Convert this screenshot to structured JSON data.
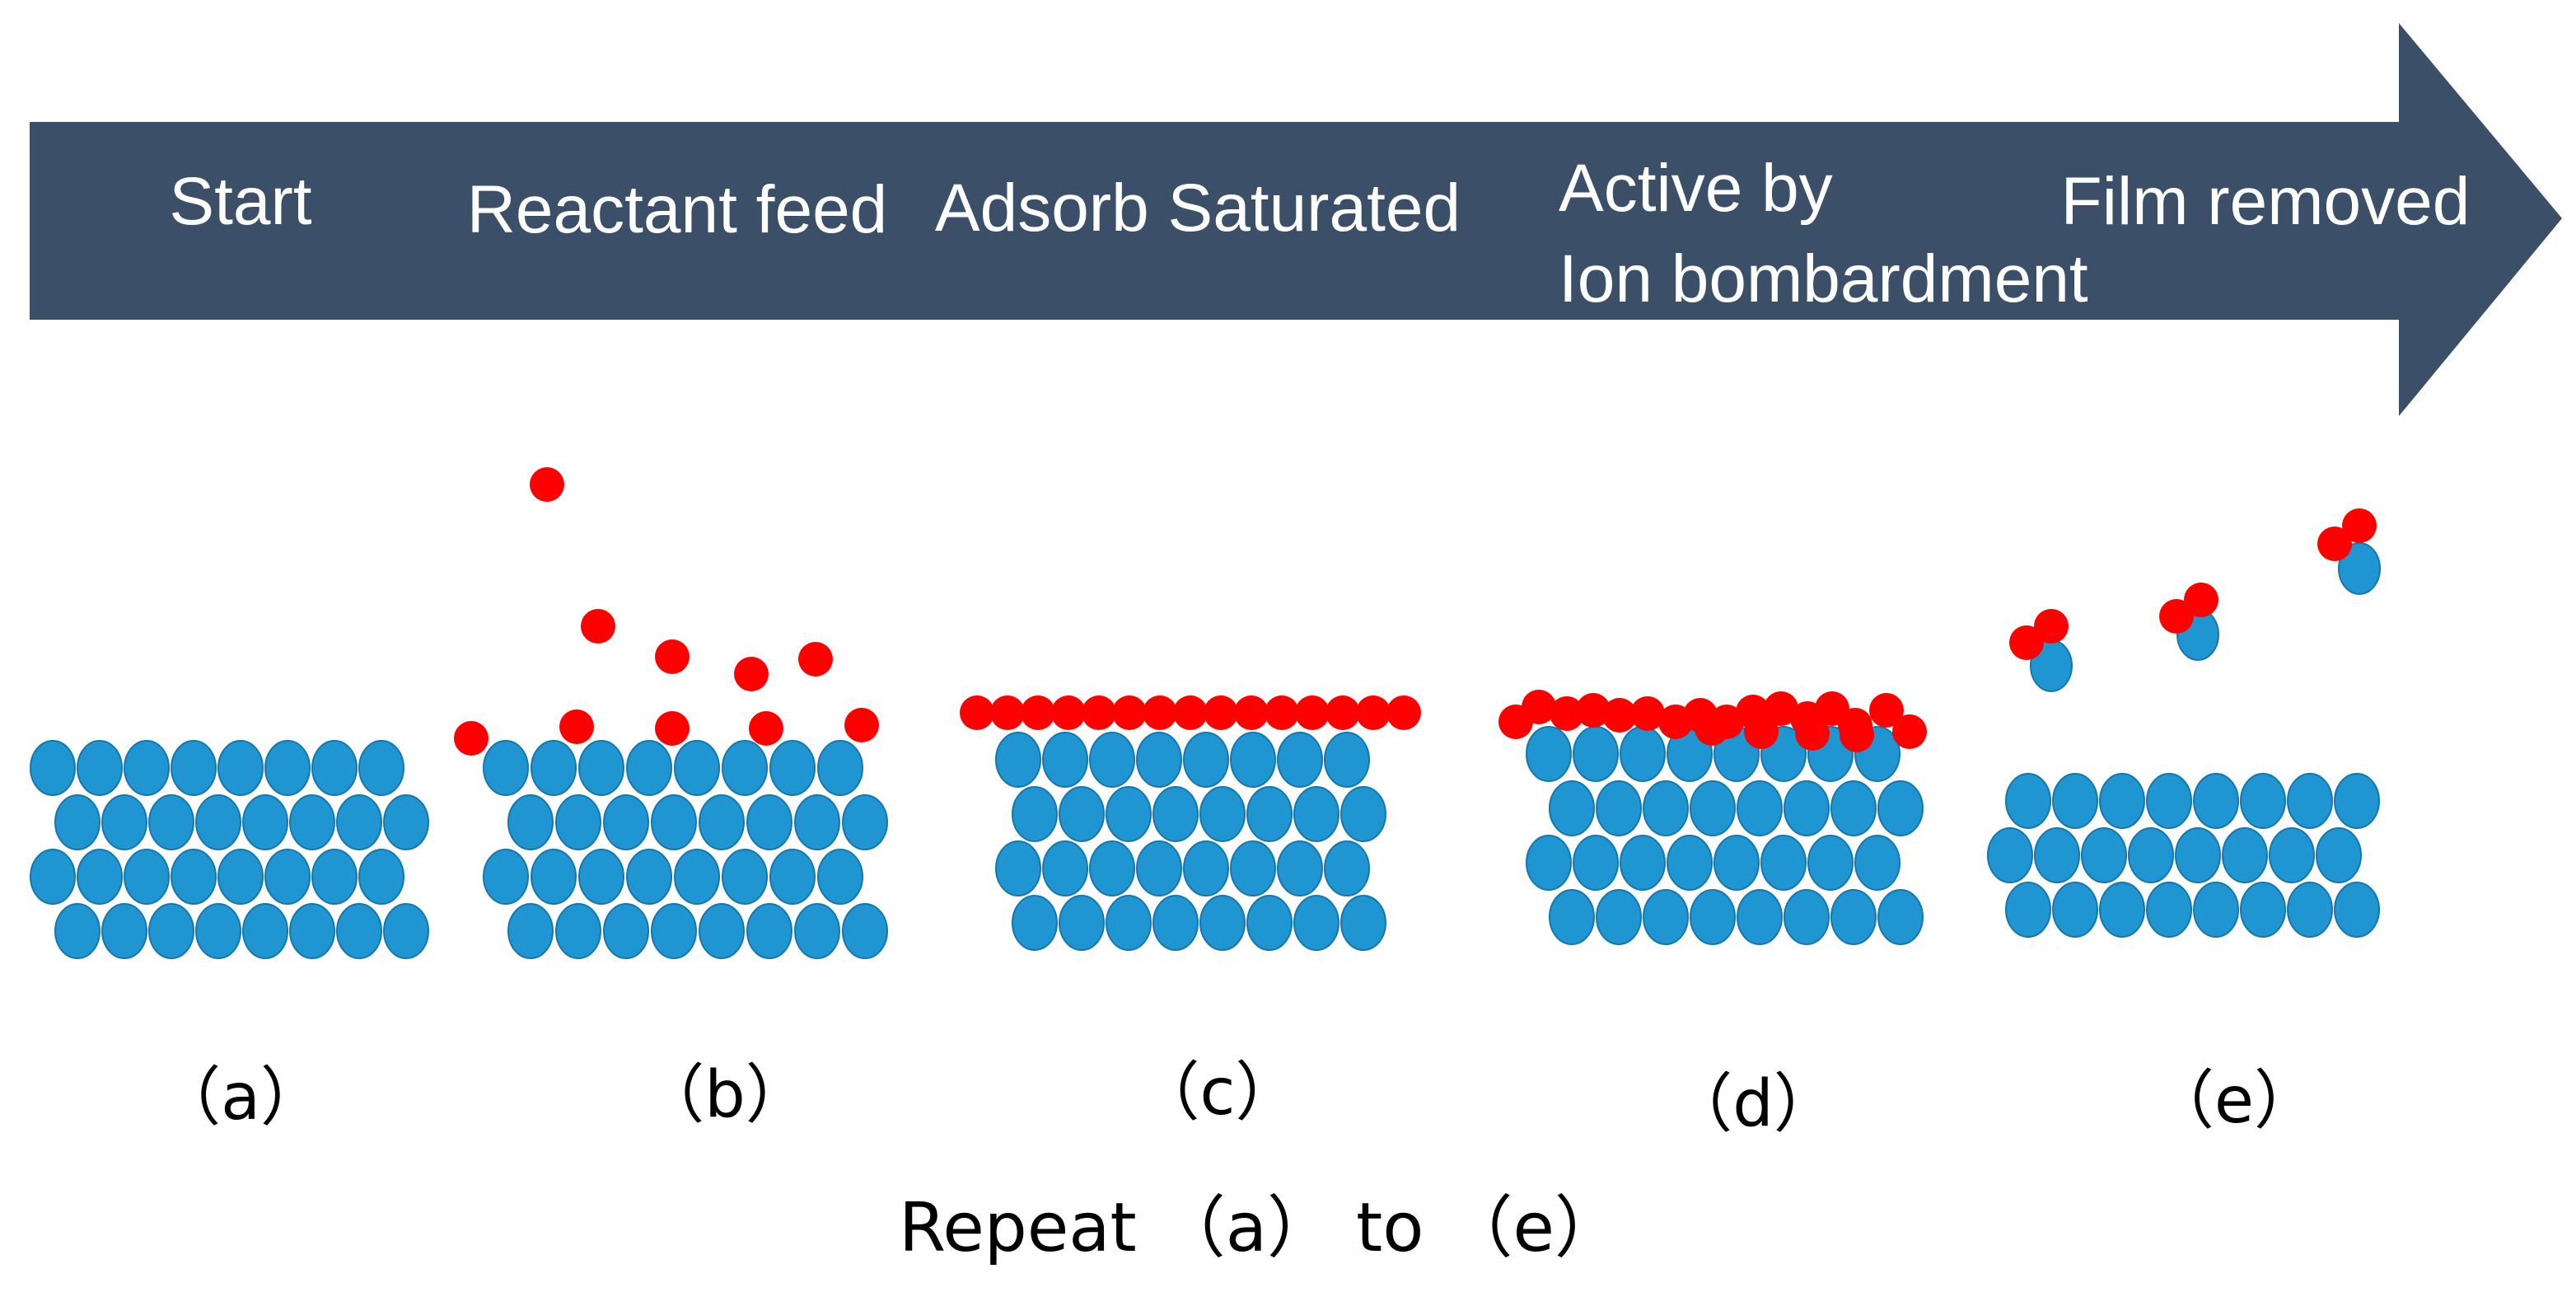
{
  "colors": {
    "arrow": "#3b5068",
    "atom": "#1f95d2",
    "atom_stroke": "#1577ad",
    "reactant": "#ff0000",
    "stage_text": "#ffffff",
    "caption_text": "#000000"
  },
  "stages": [
    {
      "id": "a",
      "title_lines": [
        "Start"
      ],
      "caption": "（a）"
    },
    {
      "id": "b",
      "title_lines": [
        "Reactant feed"
      ],
      "caption": "（b）"
    },
    {
      "id": "c",
      "title_lines": [
        "Adsorb Saturated"
      ],
      "caption": "（c）"
    },
    {
      "id": "d",
      "title_lines": [
        "Active by",
        "Ion bombardment"
      ],
      "caption": "（d）"
    },
    {
      "id": "e",
      "title_lines": [
        "Film removed"
      ],
      "caption": "（e）"
    }
  ],
  "repeat": {
    "text": "Repeat （a） to （e）"
  },
  "icons": {
    "process_arrow": "right-arrow-banner-icon",
    "atom": "substrate-atom-icon",
    "reactant": "reactant-molecule-icon"
  }
}
